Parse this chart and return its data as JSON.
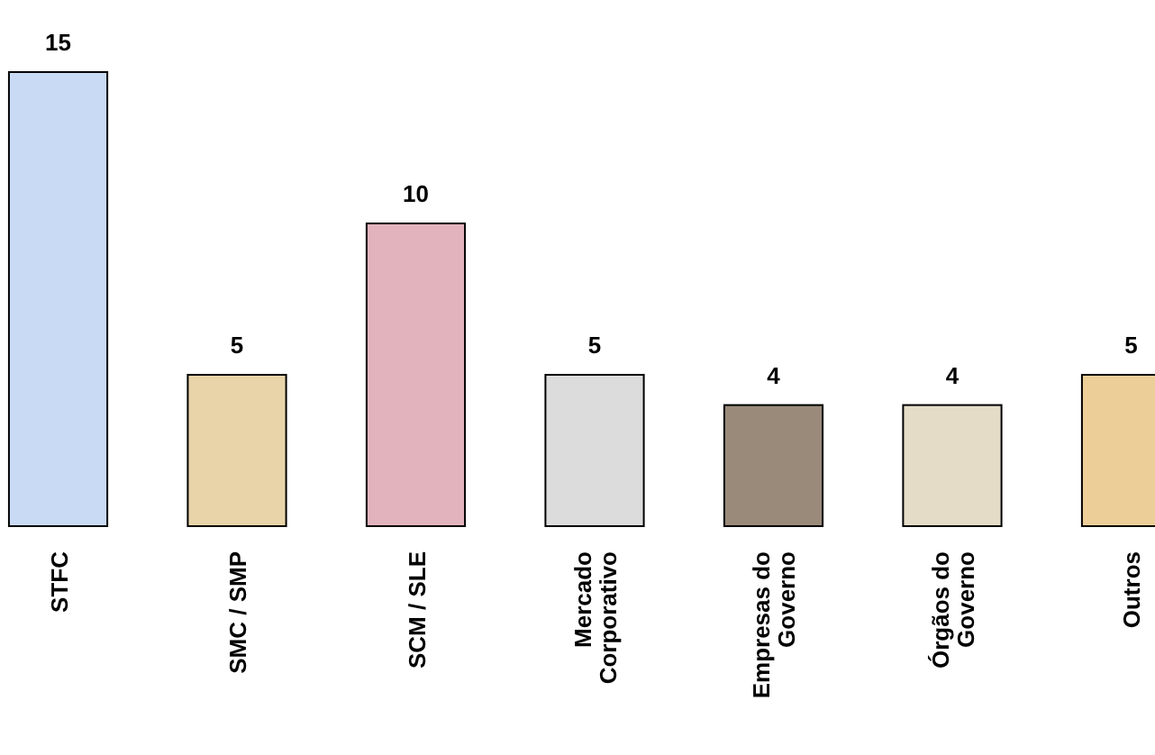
{
  "chart_data": {
    "type": "bar",
    "categories": [
      "STFC",
      "SMC / SMP",
      "SCM / SLE",
      "Mercado Corporativo",
      "Empresas do Governo",
      "Órgãos do Governo",
      "Outros"
    ],
    "values": [
      15,
      5,
      10,
      5,
      4,
      4,
      5
    ],
    "colors": [
      "#c9daf5",
      "#e8d4a8",
      "#e3b3bd",
      "#dcdcdc",
      "#9a8a7a",
      "#e5dcc8",
      "#eccf98"
    ],
    "data_labels": true
  }
}
